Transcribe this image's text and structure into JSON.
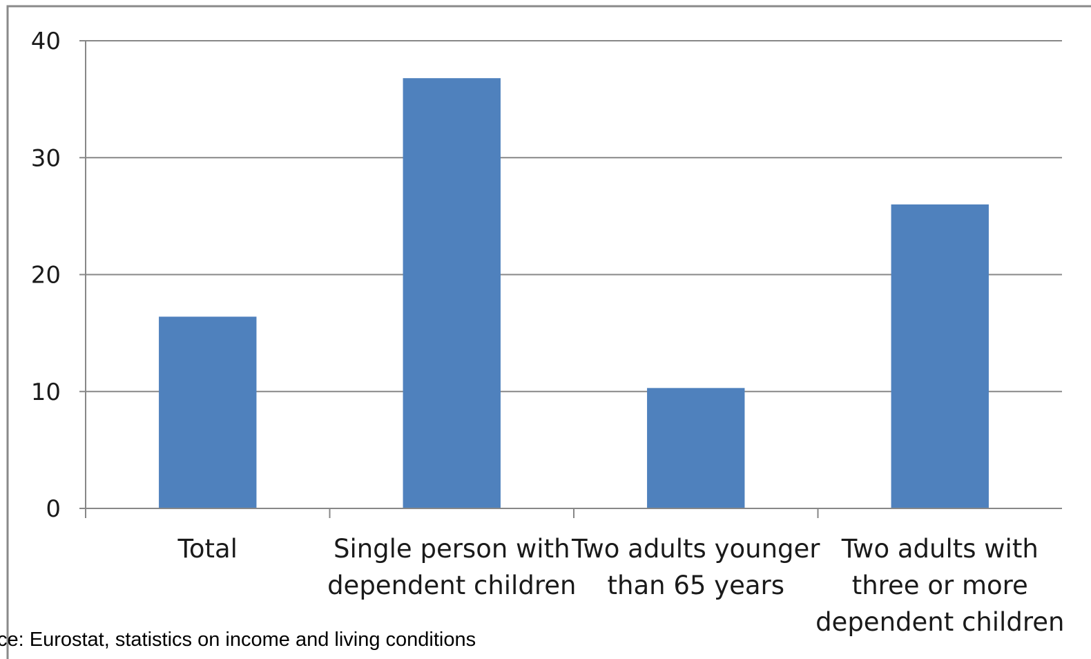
{
  "chart_data": {
    "type": "bar",
    "title": "",
    "xlabel": "",
    "ylabel": "",
    "categories": [
      [
        "Total"
      ],
      [
        "Single person with",
        "dependent children"
      ],
      [
        "Two adults younger",
        "than 65 years"
      ],
      [
        "Two adults with",
        "three or more",
        "dependent children"
      ]
    ],
    "values": [
      16.4,
      36.8,
      10.3,
      26.0
    ],
    "ylim": [
      0,
      40
    ],
    "yticks": [
      0,
      10,
      20,
      30,
      40
    ],
    "grid": true,
    "bar_color": "#4F81BD",
    "gridline_color": "#878787",
    "legend": "none"
  },
  "caption": "ce: Eurostat, statistics on income and living conditions"
}
